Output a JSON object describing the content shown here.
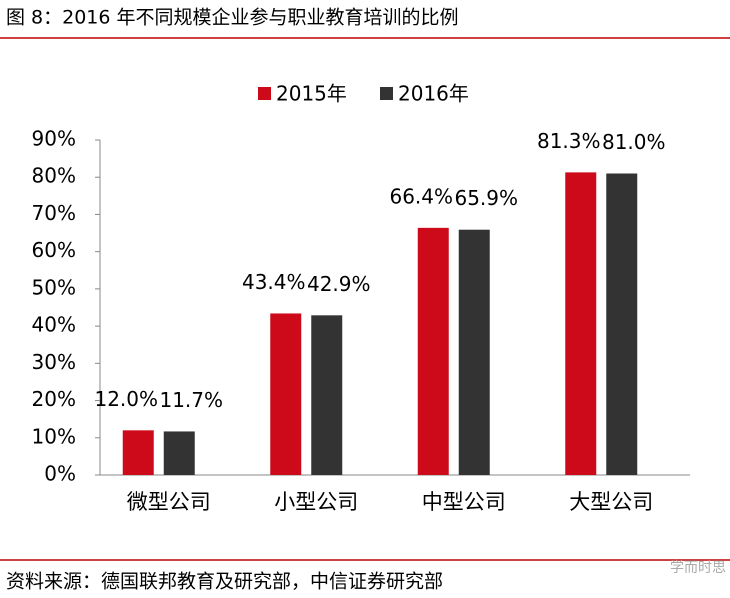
{
  "chart_data": {
    "type": "bar",
    "title": "图 8：2016 年不同规模企业参与职业教育培训的比例",
    "categories": [
      "微型公司",
      "小型公司",
      "中型公司",
      "大型公司"
    ],
    "series": [
      {
        "name": "2015年",
        "color": "#cc0a1a",
        "values": [
          12.0,
          43.4,
          66.4,
          81.3
        ],
        "value_labels": [
          "12.0%",
          "43.4%",
          "66.4%",
          "81.3%"
        ]
      },
      {
        "name": "2016年",
        "color": "#333333",
        "values": [
          11.7,
          42.9,
          65.9,
          81.0
        ],
        "value_labels": [
          "11.7%",
          "42.9%",
          "65.9%",
          "81.0%"
        ]
      }
    ],
    "ylim": [
      0,
      90
    ],
    "yticks": [
      {
        "value": 0,
        "label": "0%"
      },
      {
        "value": 10,
        "label": "10%"
      },
      {
        "value": 20,
        "label": "20%"
      },
      {
        "value": 30,
        "label": "30%"
      },
      {
        "value": 40,
        "label": "40%"
      },
      {
        "value": 50,
        "label": "50%"
      },
      {
        "value": 60,
        "label": "60%"
      },
      {
        "value": 70,
        "label": "70%"
      },
      {
        "value": 80,
        "label": "80%"
      },
      {
        "value": 90,
        "label": "90%"
      }
    ],
    "grid": false,
    "legend": "top",
    "source": "资料来源：德国联邦教育及研究部，中信证券研究部",
    "watermark": "学而时思"
  }
}
